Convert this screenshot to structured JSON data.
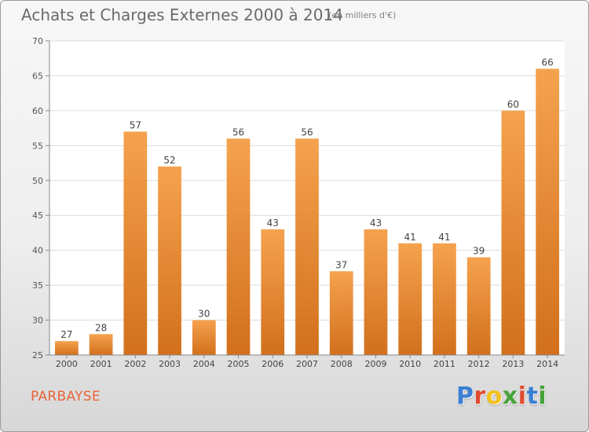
{
  "header": {
    "title": "Achats et Charges Externes 2000 à 2014",
    "subtitle": "(en milliers d'€)"
  },
  "footer": {
    "commune": "PARBAYSE",
    "logo_letters": [
      "P",
      "r",
      "o",
      "x",
      "i",
      "t",
      "i"
    ]
  },
  "colors": {
    "bar_top": "#f5a24e",
    "bar_bottom": "#d2701c",
    "logo": [
      "#3b7fd3",
      "#e14b2e",
      "#f1c21b",
      "#47a33a",
      "#e14b2e",
      "#3b7fd3",
      "#47a33a"
    ]
  },
  "chart_data": {
    "type": "bar",
    "title": "Achats et Charges Externes 2000 à 2014",
    "categories": [
      "2000",
      "2001",
      "2002",
      "2003",
      "2004",
      "2005",
      "2006",
      "2007",
      "2008",
      "2009",
      "2010",
      "2011",
      "2012",
      "2013",
      "2014"
    ],
    "values": [
      27,
      28,
      57,
      52,
      30,
      56,
      43,
      56,
      37,
      43,
      41,
      41,
      39,
      60,
      66
    ],
    "ylim": [
      25,
      70
    ],
    "yticks": [
      25,
      30,
      35,
      40,
      45,
      50,
      55,
      60,
      65,
      70
    ],
    "grid": true,
    "data_labels": true
  }
}
